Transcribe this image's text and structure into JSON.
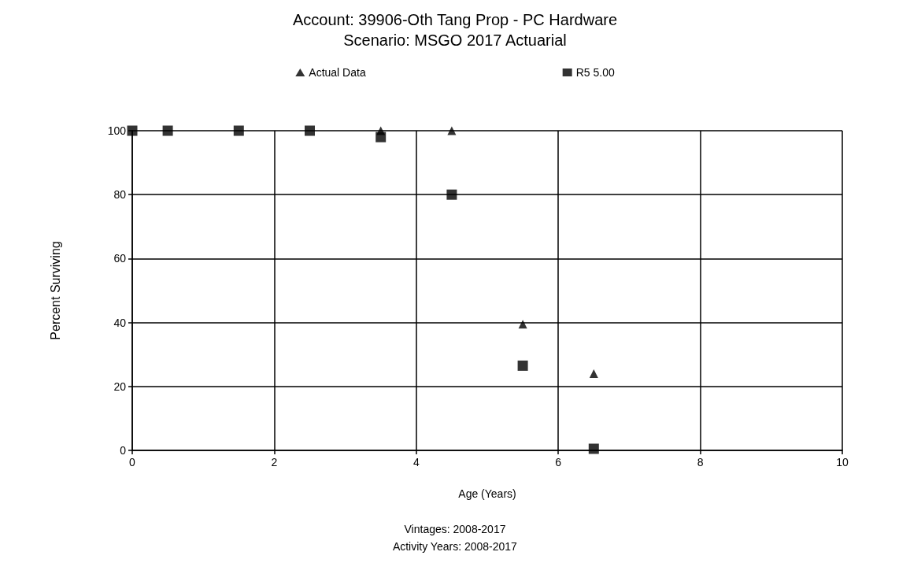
{
  "chart_data": {
    "type": "scatter",
    "title": "Account: 39906-Oth Tang Prop - PC Hardware",
    "subtitle": "Scenario: MSGO 2017 Actuarial",
    "xlabel": "Age (Years)",
    "ylabel": "Percent Surviving",
    "annotations": [
      "Vintages: 2008-2017",
      "Activity Years: 2008-2017"
    ],
    "series": [
      {
        "name": "Actual Data",
        "color": "#000000",
        "marker": "triangle",
        "x": [
          3.5,
          4.5,
          5.5,
          6.5
        ],
        "values": [
          100,
          100,
          39.5,
          24
        ]
      },
      {
        "name": "R5 5.00",
        "color": "#000000",
        "marker": "square",
        "x": [
          0,
          0.5,
          1.5,
          2.5,
          3.5,
          4.5,
          5.5,
          6.5
        ],
        "values": [
          100,
          100,
          100,
          100,
          98,
          80,
          26.5,
          0.5
        ]
      }
    ],
    "xlim": [
      0,
      10
    ],
    "xticks": [
      0,
      2,
      4,
      6,
      8,
      10
    ],
    "ylim": [
      0,
      100
    ],
    "yticks": [
      0,
      20,
      40,
      60,
      80,
      100
    ],
    "grid": true,
    "legend": "top"
  }
}
